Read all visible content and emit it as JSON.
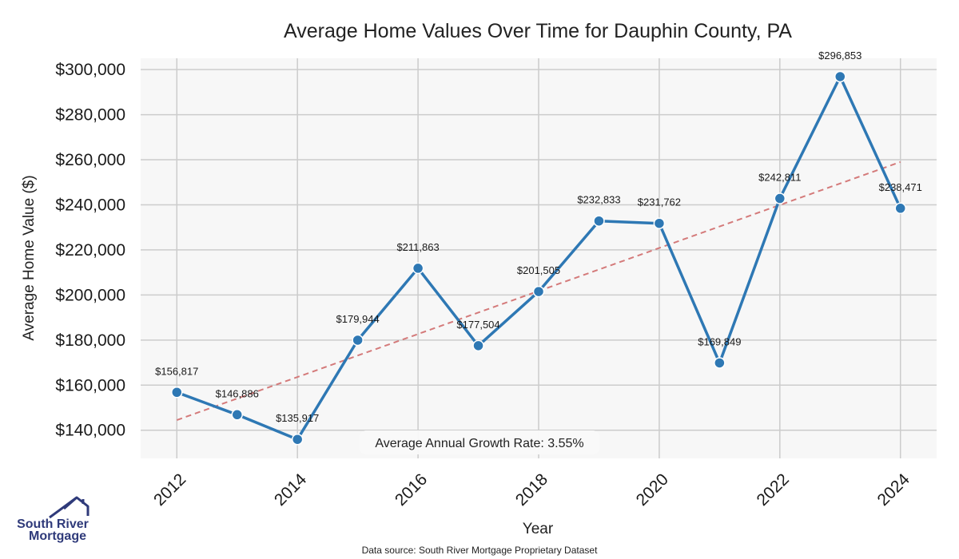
{
  "chart_data": {
    "type": "line",
    "title": "Average Home Values Over Time for Dauphin County, PA",
    "xlabel": "Year",
    "ylabel": "Average Home Value ($)",
    "x": [
      2012,
      2013,
      2014,
      2015,
      2016,
      2017,
      2018,
      2019,
      2020,
      2021,
      2022,
      2023,
      2024
    ],
    "values": [
      156817,
      146886,
      135917,
      179944,
      211863,
      177504,
      201505,
      232833,
      231762,
      169849,
      242811,
      296853,
      238471
    ],
    "data_labels": [
      "$156,817",
      "$146,886",
      "$135,917",
      "$179,944",
      "$211,863",
      "$177,504",
      "$201,505",
      "$232,833",
      "$231,762",
      "$169,849",
      "$242,811",
      "$296,853",
      "$238,471"
    ],
    "x_ticks": [
      "2012",
      "2014",
      "2016",
      "2018",
      "2020",
      "2022",
      "2024"
    ],
    "y_ticks": [
      "$140,000",
      "$160,000",
      "$180,000",
      "$200,000",
      "$220,000",
      "$240,000",
      "$260,000",
      "$280,000",
      "$300,000"
    ],
    "y_tick_values": [
      140000,
      160000,
      180000,
      200000,
      220000,
      240000,
      260000,
      280000,
      300000
    ],
    "xlim": [
      2011.4,
      2024.6
    ],
    "ylim": [
      127500,
      305000
    ],
    "trend_line": {
      "start": 144500,
      "end": 259000,
      "color": "#d47a7a",
      "style": "dashed"
    },
    "grid": true,
    "series_color": "#2e78b4",
    "plot_background": "#f7f7f7",
    "grid_color": "#cccccc"
  },
  "annotation": {
    "growth_rate": "Average Annual Growth Rate: 3.55%"
  },
  "footer": {
    "source": "Data source: South River Mortgage Proprietary Dataset"
  },
  "logo": {
    "line1": "South River",
    "line2": "Mortgage",
    "color": "#2f3a7a"
  }
}
